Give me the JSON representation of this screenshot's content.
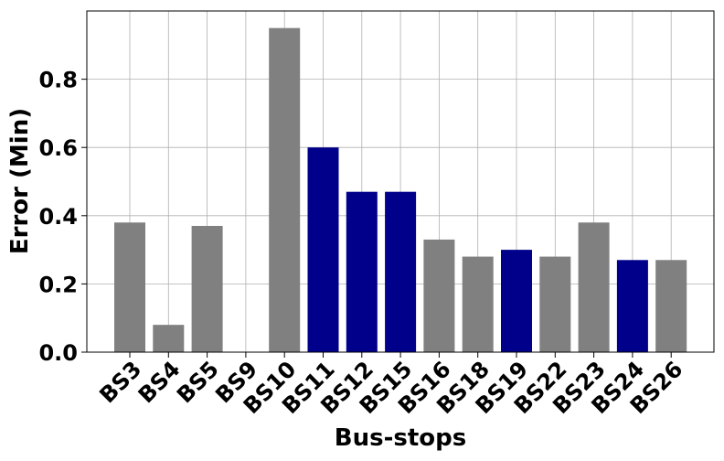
{
  "chart_data": {
    "type": "bar",
    "categories": [
      "BS3",
      "BS4",
      "BS5",
      "BS9",
      "BS10",
      "BS11",
      "BS12",
      "BS15",
      "BS16",
      "BS18",
      "BS19",
      "BS22",
      "BS23",
      "BS24",
      "BS26"
    ],
    "values": [
      0.38,
      0.08,
      0.37,
      0.0,
      0.95,
      0.6,
      0.47,
      0.47,
      0.33,
      0.28,
      0.3,
      0.28,
      0.38,
      0.27,
      0.27
    ],
    "bar_colors": [
      "#808080",
      "#808080",
      "#808080",
      "#808080",
      "#808080",
      "#00008b",
      "#00008b",
      "#00008b",
      "#808080",
      "#808080",
      "#00008b",
      "#808080",
      "#808080",
      "#00008b",
      "#808080"
    ],
    "xlabel": "Bus-stops",
    "ylabel": "Error (Min)",
    "ylim": [
      0,
      1.0
    ],
    "yticks": [
      "0.0",
      "0.2",
      "0.4",
      "0.6",
      "0.8"
    ],
    "grid": true
  }
}
